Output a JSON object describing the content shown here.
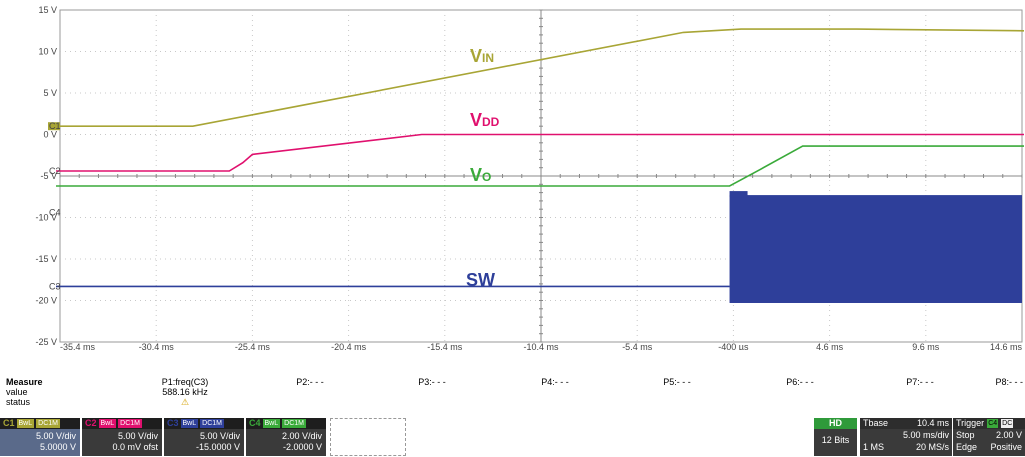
{
  "scope": {
    "y_ticks": [
      "15 V",
      "10 V",
      "5 V",
      "0 V",
      "-5 V",
      "-10 V",
      "-15 V",
      "-20 V",
      "-25 V"
    ],
    "x_ticks": [
      "-35.4 ms",
      "-30.4 ms",
      "-25.4 ms",
      "-20.4 ms",
      "-15.4 ms",
      "-10.4 ms",
      "-5.4 ms",
      "-400 µs",
      "4.6 ms",
      "9.6 ms",
      "14.6 ms"
    ],
    "markers": [
      "C1",
      "C2",
      "C4",
      "C3"
    ],
    "signals": [
      {
        "name": "VIN",
        "main": "V",
        "sub": "IN",
        "color": "#a8a535"
      },
      {
        "name": "VDD",
        "main": "V",
        "sub": "DD",
        "color": "#e0106e"
      },
      {
        "name": "VO",
        "main": "V",
        "sub": "O",
        "color": "#3aaa3a"
      },
      {
        "name": "SW",
        "main": "SW",
        "sub": "",
        "color": "#2e3f9a"
      }
    ]
  },
  "chart_data": {
    "type": "line",
    "xlabel": "",
    "ylabel": "",
    "xlim": [
      -35.4,
      14.6
    ],
    "ylim": [
      -25,
      15
    ],
    "series": [
      {
        "name": "VIN",
        "x": [
          -37,
          -28.5,
          -3,
          0,
          6,
          16
        ],
        "y": [
          1,
          1,
          12.3,
          12.7,
          12.7,
          12.5
        ]
      },
      {
        "name": "VDD",
        "x": [
          -37,
          -26.6,
          -25.9,
          -25.4,
          -16.6,
          16
        ],
        "y": [
          -4.4,
          -4.4,
          -3.4,
          -2.4,
          0,
          0
        ]
      },
      {
        "name": "VO",
        "x": [
          -37,
          -0.6,
          1,
          3.2,
          16
        ],
        "y": [
          -6.2,
          -6.2,
          -4.2,
          -1.4,
          -1.4
        ]
      },
      {
        "name": "SW",
        "x": [
          -37,
          -0.6
        ],
        "y": [
          -18.3,
          -18.3
        ]
      }
    ],
    "sw_burst": {
      "x_start": -0.6,
      "x_end": 16,
      "y_top": -7.3,
      "y_bottom": -20.3
    }
  },
  "measure": {
    "title": "Measure",
    "rows": [
      "value",
      "status"
    ],
    "params": [
      {
        "label": "P1:freq(C3)",
        "value": "588.16 kHz",
        "status": "⚠"
      },
      {
        "label": "P2:- - -",
        "value": "",
        "status": ""
      },
      {
        "label": "P3:- - -",
        "value": "",
        "status": ""
      },
      {
        "label": "P4:- - -",
        "value": "",
        "status": ""
      },
      {
        "label": "P5:- - -",
        "value": "",
        "status": ""
      },
      {
        "label": "P6:- - -",
        "value": "",
        "status": ""
      },
      {
        "label": "P7:- - -",
        "value": "",
        "status": ""
      },
      {
        "label": "P8:- - -",
        "value": "",
        "status": ""
      }
    ]
  },
  "channels": [
    {
      "id": "C1",
      "bwl": "BwL",
      "coupling": "DC1M",
      "vdiv": "5.00 V/div",
      "offset": "5.0000 V",
      "color": "#a8a535"
    },
    {
      "id": "C2",
      "bwl": "BwL",
      "coupling": "DC1M",
      "vdiv": "5.00 V/div",
      "offset": "0.0 mV ofst",
      "color": "#e0106e"
    },
    {
      "id": "C3",
      "bwl": "BwL",
      "coupling": "DC1M",
      "vdiv": "5.00 V/div",
      "offset": "-15.0000 V",
      "color": "#2e3f9a"
    },
    {
      "id": "C4",
      "bwl": "BwL",
      "coupling": "DC1M",
      "vdiv": "2.00 V/div",
      "offset": "-2.0000 V",
      "color": "#3aaa3a"
    }
  ],
  "acq": {
    "mode": "HD",
    "bits": "12 Bits"
  },
  "timebase": {
    "label": "Tbase",
    "delay": "10.4 ms",
    "div": "5.00 ms/div",
    "points": "1 MS",
    "rate": "20 MS/s"
  },
  "trigger": {
    "label": "Trigger",
    "src": "C4",
    "coupling": "DC",
    "mode": "Stop",
    "level": "2.00 V",
    "type": "Edge",
    "slope": "Positive"
  }
}
